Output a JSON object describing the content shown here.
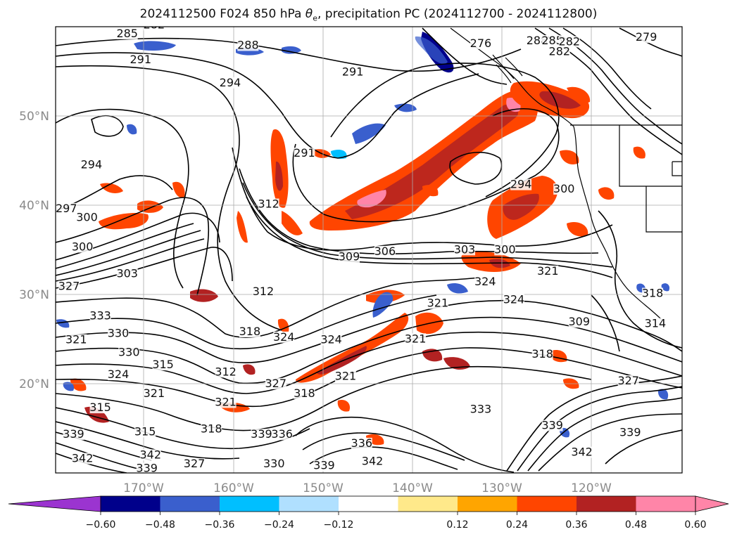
{
  "title": {
    "prefix": "2024112500 F024 850 hPa ",
    "symbol": "θ",
    "subscript": "e",
    "suffix": ", precipitation PC (2024112700 - 2024112800)"
  },
  "map": {
    "lat_labels": [
      "50°N",
      "40°N",
      "30°N",
      "20°N"
    ],
    "lon_labels": [
      "170°W",
      "160°W",
      "150°W",
      "140°W",
      "130°W",
      "120°W"
    ],
    "contour_labels": [
      {
        "text": "282",
        "lon": -169.0,
        "lat": 59.9
      },
      {
        "text": "285",
        "lon": -172.0,
        "lat": 58.9
      },
      {
        "text": "291",
        "lon": -170.5,
        "lat": 56.0
      },
      {
        "text": "288",
        "lon": -158.5,
        "lat": 57.6
      },
      {
        "text": "291",
        "lon": -146.8,
        "lat": 54.6
      },
      {
        "text": "294",
        "lon": -160.5,
        "lat": 53.4
      },
      {
        "text": "276",
        "lon": -132.5,
        "lat": 57.8
      },
      {
        "text": "288",
        "lon": -126.2,
        "lat": 58.1
      },
      {
        "text": "285",
        "lon": -124.5,
        "lat": 58.1
      },
      {
        "text": "282",
        "lon": -122.6,
        "lat": 58.0
      },
      {
        "text": "282",
        "lon": -123.7,
        "lat": 56.9
      },
      {
        "text": "279",
        "lon": -114.0,
        "lat": 58.5
      },
      {
        "text": "294",
        "lon": -176.0,
        "lat": 44.2
      },
      {
        "text": "297",
        "lon": -178.8,
        "lat": 39.3
      },
      {
        "text": "300",
        "lon": -176.5,
        "lat": 38.3
      },
      {
        "text": "300",
        "lon": -177.0,
        "lat": 35.0
      },
      {
        "text": "303",
        "lon": -172.0,
        "lat": 32.0
      },
      {
        "text": "327",
        "lon": -178.5,
        "lat": 30.6
      },
      {
        "text": "333",
        "lon": -175.0,
        "lat": 27.3
      },
      {
        "text": "312",
        "lon": -156.2,
        "lat": 39.8
      },
      {
        "text": "312",
        "lon": -156.8,
        "lat": 30.0
      },
      {
        "text": "291",
        "lon": -152.2,
        "lat": 45.5
      },
      {
        "text": "294",
        "lon": -128.0,
        "lat": 42.0
      },
      {
        "text": "300",
        "lon": -123.2,
        "lat": 41.5
      },
      {
        "text": "309",
        "lon": -147.2,
        "lat": 33.9
      },
      {
        "text": "306",
        "lon": -143.2,
        "lat": 34.5
      },
      {
        "text": "303",
        "lon": -134.3,
        "lat": 34.7
      },
      {
        "text": "300",
        "lon": -129.8,
        "lat": 34.7
      },
      {
        "text": "321",
        "lon": -125.0,
        "lat": 32.3
      },
      {
        "text": "324",
        "lon": -132.0,
        "lat": 31.1
      },
      {
        "text": "321",
        "lon": -137.3,
        "lat": 28.7
      },
      {
        "text": "324",
        "lon": -128.8,
        "lat": 29.1
      },
      {
        "text": "330",
        "lon": -173.0,
        "lat": 25.3
      },
      {
        "text": "321",
        "lon": -177.7,
        "lat": 24.6
      },
      {
        "text": "330",
        "lon": -171.8,
        "lat": 23.2
      },
      {
        "text": "318",
        "lon": -158.3,
        "lat": 25.5
      },
      {
        "text": "324",
        "lon": -154.5,
        "lat": 24.9
      },
      {
        "text": "324",
        "lon": -149.2,
        "lat": 24.6
      },
      {
        "text": "321",
        "lon": -139.8,
        "lat": 24.7
      },
      {
        "text": "309",
        "lon": -121.5,
        "lat": 26.6
      },
      {
        "text": "318",
        "lon": -113.3,
        "lat": 29.8
      },
      {
        "text": "314",
        "lon": -113.0,
        "lat": 26.4
      },
      {
        "text": "315",
        "lon": -168.0,
        "lat": 21.8
      },
      {
        "text": "312",
        "lon": -161.0,
        "lat": 21.0
      },
      {
        "text": "324",
        "lon": -173.0,
        "lat": 20.7
      },
      {
        "text": "321",
        "lon": -147.6,
        "lat": 20.5
      },
      {
        "text": "318",
        "lon": -125.6,
        "lat": 23.0
      },
      {
        "text": "327",
        "lon": -116.0,
        "lat": 20.0
      },
      {
        "text": "321",
        "lon": -169.0,
        "lat": 18.6
      },
      {
        "text": "321",
        "lon": -161.0,
        "lat": 17.6
      },
      {
        "text": "327",
        "lon": -155.4,
        "lat": 19.7
      },
      {
        "text": "318",
        "lon": -152.2,
        "lat": 18.6
      },
      {
        "text": "315",
        "lon": -175.0,
        "lat": 17.0
      },
      {
        "text": "315",
        "lon": -170.0,
        "lat": 14.3
      },
      {
        "text": "318",
        "lon": -162.6,
        "lat": 14.6
      },
      {
        "text": "339",
        "lon": -157.0,
        "lat": 14.0
      },
      {
        "text": "336",
        "lon": -154.7,
        "lat": 14.0
      },
      {
        "text": "339",
        "lon": -178.0,
        "lat": 14.0
      },
      {
        "text": "336",
        "lon": -145.8,
        "lat": 13.0
      },
      {
        "text": "333",
        "lon": -132.5,
        "lat": 16.8
      },
      {
        "text": "339",
        "lon": -124.5,
        "lat": 15.0
      },
      {
        "text": "339",
        "lon": -115.8,
        "lat": 14.2
      },
      {
        "text": "342",
        "lon": -121.2,
        "lat": 12.0
      },
      {
        "text": "342",
        "lon": -177.0,
        "lat": 11.3
      },
      {
        "text": "342",
        "lon": -169.4,
        "lat": 11.7
      },
      {
        "text": "339",
        "lon": -169.8,
        "lat": 10.2
      },
      {
        "text": "327",
        "lon": -164.5,
        "lat": 10.7
      },
      {
        "text": "330",
        "lon": -155.6,
        "lat": 10.7
      },
      {
        "text": "339",
        "lon": -150.0,
        "lat": 10.5
      },
      {
        "text": "342",
        "lon": -144.6,
        "lat": 11.0
      }
    ]
  },
  "colorbar": {
    "ticks": [
      "−0.60",
      "−0.48",
      "−0.36",
      "−0.24",
      "−0.12",
      "0.12",
      "0.24",
      "0.36",
      "0.48",
      "0.60"
    ],
    "colors": {
      "under": "#9b34d0",
      "bins": [
        "#00008b",
        "#3a5fcd",
        "#00bfff",
        "#b0e0ff",
        "#ffffff",
        "#ffe98a",
        "#ffa500",
        "#ff4500",
        "#b22222",
        "#ff85a8"
      ],
      "over": "#ff85a8"
    }
  }
}
